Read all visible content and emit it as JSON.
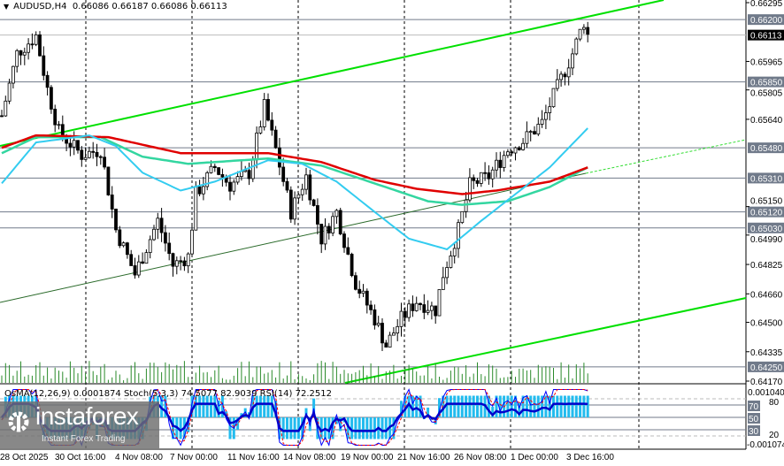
{
  "header": {
    "symbol": "AUDUSD,H4",
    "ohlc": "0.66086 0.66187 0.66086 0.66113"
  },
  "indicator_header": "OsMA(12,26,9) 0.0001874  Stoch(5,3,3) 74.5077 82.9039  RSI(14) 72.2512",
  "logo": {
    "name": "instaforex",
    "tagline": "Instant Forex Trading"
  },
  "colors": {
    "upper_channel": "#00e000",
    "ma_red": "#e00000",
    "ma_green": "#33d6a0",
    "ma_cyan": "#33ccf0",
    "osma": "#22bbee",
    "rsi": "#0000cc",
    "stoch_signal": "#ff0000",
    "level_tag": "#707a8a",
    "bid_tag": "#000000"
  },
  "chart_data": {
    "type": "candlestick",
    "symbol": "AUDUSD",
    "timeframe": "H4",
    "ylim": [
      0.6417,
      0.66295
    ],
    "price_ticks": [
      "0.66295",
      "0.65965",
      "0.65805",
      "0.65640",
      "0.65150",
      "0.64990",
      "0.64825",
      "0.64660",
      "0.64500",
      "0.64335",
      "0.64170"
    ],
    "levels": [
      "0.66200",
      "0.65850",
      "0.65480",
      "0.65310",
      "0.65120",
      "0.65030",
      "0.64250"
    ],
    "current_price": "0.66113",
    "x_labels": [
      "28 Oct 2025",
      "30 Oct 16:00",
      "4 Nov 08:00",
      "7 Nov 00:00",
      "11 Nov 16:00",
      "14 Nov 08:00",
      "19 Nov 00:00",
      "21 Nov 16:00",
      "26 Nov 08:00",
      "1 Dec 00:00",
      "3 Dec 16:00"
    ],
    "close_path": [
      [
        0,
        0.6566
      ],
      [
        4,
        0.6601
      ],
      [
        9,
        0.6611
      ],
      [
        12,
        0.6581
      ],
      [
        15,
        0.6557
      ],
      [
        21,
        0.6544
      ],
      [
        26,
        0.6547
      ],
      [
        30,
        0.6502
      ],
      [
        35,
        0.6477
      ],
      [
        41,
        0.6507
      ],
      [
        45,
        0.6482
      ],
      [
        49,
        0.6487
      ],
      [
        51,
        0.6522
      ],
      [
        56,
        0.6537
      ],
      [
        60,
        0.6527
      ],
      [
        65,
        0.6534
      ],
      [
        69,
        0.6571
      ],
      [
        72,
        0.6547
      ],
      [
        76,
        0.6512
      ],
      [
        80,
        0.6532
      ],
      [
        84,
        0.6497
      ],
      [
        88,
        0.6512
      ],
      [
        93,
        0.6472
      ],
      [
        98,
        0.6452
      ],
      [
        101,
        0.6437
      ],
      [
        105,
        0.6452
      ],
      [
        109,
        0.6462
      ],
      [
        114,
        0.6457
      ],
      [
        116,
        0.6477
      ],
      [
        120,
        0.6502
      ],
      [
        123,
        0.6527
      ],
      [
        128,
        0.6532
      ],
      [
        133,
        0.6547
      ],
      [
        137,
        0.6552
      ],
      [
        142,
        0.6562
      ],
      [
        146,
        0.6582
      ],
      [
        150,
        0.6601
      ],
      [
        153,
        0.6619
      ],
      [
        154,
        0.66113
      ]
    ],
    "ma_red": [
      [
        0,
        0.6548
      ],
      [
        9,
        0.6555
      ],
      [
        28,
        0.6554
      ],
      [
        47,
        0.6545
      ],
      [
        70,
        0.6545
      ],
      [
        84,
        0.654
      ],
      [
        98,
        0.653
      ],
      [
        109,
        0.6525
      ],
      [
        121,
        0.6522
      ],
      [
        130,
        0.6524
      ],
      [
        144,
        0.6529
      ],
      [
        154,
        0.6537
      ]
    ],
    "ma_green": [
      [
        0,
        0.6545
      ],
      [
        9,
        0.6554
      ],
      [
        26,
        0.6554
      ],
      [
        37,
        0.6543
      ],
      [
        49,
        0.6539
      ],
      [
        70,
        0.6542
      ],
      [
        84,
        0.6538
      ],
      [
        98,
        0.6528
      ],
      [
        112,
        0.6518
      ],
      [
        121,
        0.6516
      ],
      [
        133,
        0.6518
      ],
      [
        144,
        0.6526
      ],
      [
        154,
        0.6537
      ]
    ],
    "ma_cyan": [
      [
        0,
        0.6528
      ],
      [
        9,
        0.6551
      ],
      [
        23,
        0.6555
      ],
      [
        30,
        0.6549
      ],
      [
        37,
        0.6534
      ],
      [
        47,
        0.6524
      ],
      [
        56,
        0.6529
      ],
      [
        70,
        0.6541
      ],
      [
        79,
        0.6539
      ],
      [
        88,
        0.6529
      ],
      [
        98,
        0.6512
      ],
      [
        107,
        0.6497
      ],
      [
        117,
        0.6491
      ],
      [
        126,
        0.6507
      ],
      [
        135,
        0.6522
      ],
      [
        144,
        0.6537
      ],
      [
        154,
        0.6559
      ]
    ],
    "indicator": {
      "osma": 0.0001874,
      "stoch_main": 74.5077,
      "stoch_signal": 82.9039,
      "rsi": 72.2512,
      "osma_range": [
        "0.001040",
        "-0.001074"
      ],
      "levels": [
        "80",
        "70",
        "50",
        "30",
        "20"
      ]
    }
  }
}
